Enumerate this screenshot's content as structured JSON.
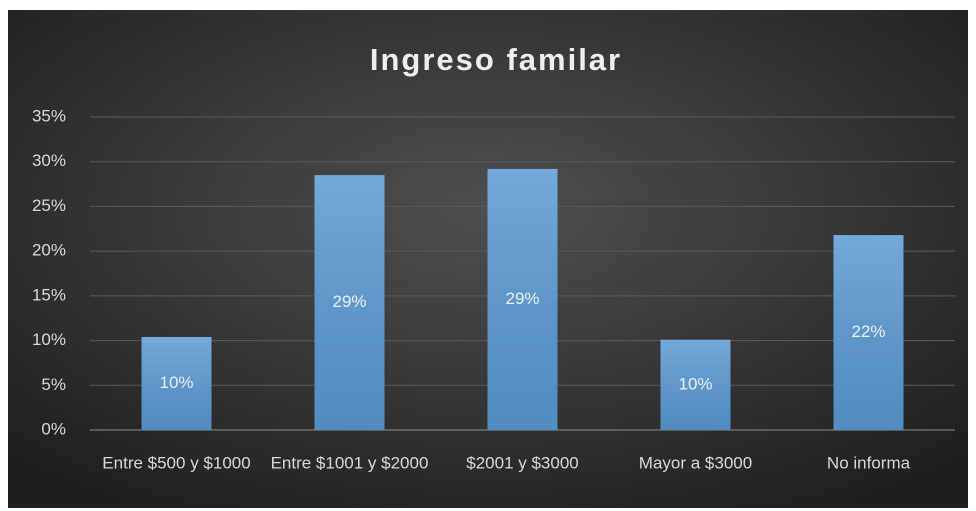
{
  "chart_data": {
    "type": "bar",
    "title": "Ingreso familar",
    "categories": [
      "Entre $500 y $1000",
      "Entre $1001 y $2000",
      "$2001 y $3000",
      "Mayor a $3000",
      "No informa"
    ],
    "values": [
      10.4,
      28.5,
      29.2,
      10.1,
      21.8
    ],
    "value_labels": [
      "10%",
      "29%",
      "29%",
      "10%",
      "22%"
    ],
    "color": "#5b9bd5",
    "ylim": [
      0,
      35
    ],
    "yticks": [
      {
        "value": 0,
        "label": "0%"
      },
      {
        "value": 5,
        "label": "5%"
      },
      {
        "value": 10,
        "label": "10%"
      },
      {
        "value": 15,
        "label": "15%"
      },
      {
        "value": 20,
        "label": "20%"
      },
      {
        "value": 25,
        "label": "25%"
      },
      {
        "value": 30,
        "label": "30%"
      },
      {
        "value": 35,
        "label": "35%"
      }
    ],
    "grid": true
  }
}
